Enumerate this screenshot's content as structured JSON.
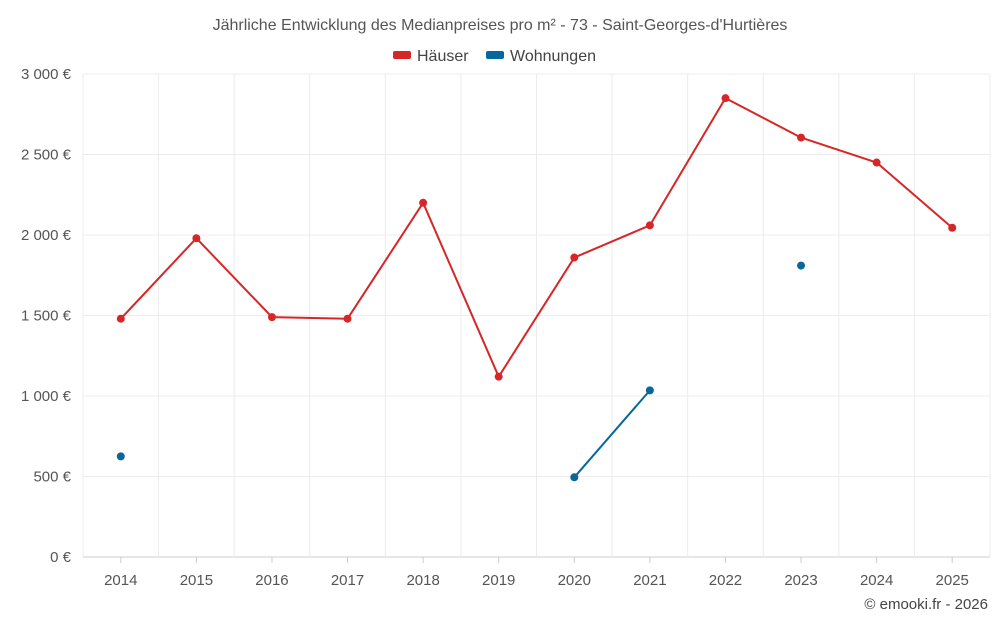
{
  "chart_data": {
    "type": "line",
    "title": "Jährliche Entwicklung des Medianpreises pro m² - 73 - Saint-Georges-d'Hurtières",
    "xlabel": "",
    "ylabel": "",
    "categories": [
      "2014",
      "2015",
      "2016",
      "2017",
      "2018",
      "2019",
      "2020",
      "2021",
      "2022",
      "2023",
      "2024",
      "2025"
    ],
    "ylim": [
      0,
      3000
    ],
    "yticks": [
      {
        "value": 0,
        "label": "0 €"
      },
      {
        "value": 500,
        "label": "500 €"
      },
      {
        "value": 1000,
        "label": "1 000 €"
      },
      {
        "value": 1500,
        "label": "1 500 €"
      },
      {
        "value": 2000,
        "label": "2 000 €"
      },
      {
        "value": 2500,
        "label": "2 500 €"
      },
      {
        "value": 3000,
        "label": "3 000 €"
      }
    ],
    "grid": true,
    "legend_position": "top-center",
    "series": [
      {
        "name": "Häuser",
        "color": "#d62728",
        "values": [
          1480,
          1980,
          1490,
          1480,
          2200,
          1120,
          1860,
          2060,
          2850,
          2605,
          2450,
          2045
        ]
      },
      {
        "name": "Wohnungen",
        "color": "#08679c",
        "values": [
          625,
          null,
          null,
          null,
          null,
          null,
          495,
          1035,
          null,
          1810,
          null,
          null
        ]
      }
    ],
    "credit": "© emooki.fr - 2026"
  }
}
